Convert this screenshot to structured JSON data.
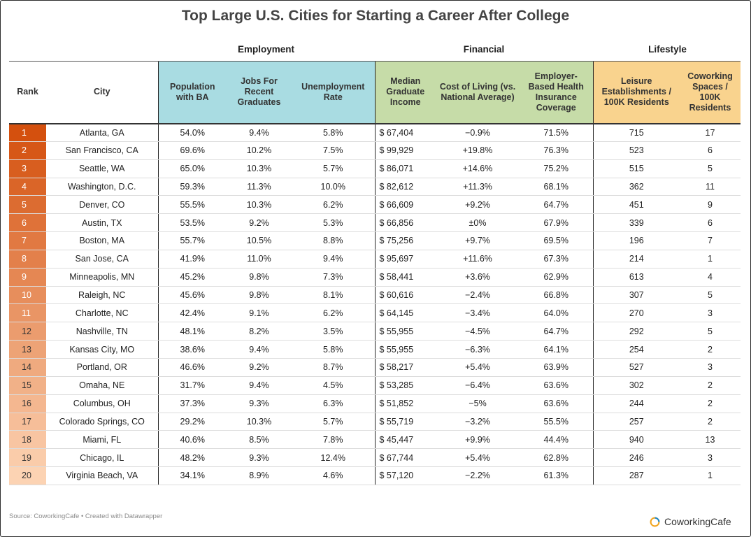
{
  "title": "Top Large U.S. Cities for Starting a Career After College",
  "groups": {
    "employment": "Employment",
    "financial": "Financial",
    "lifestyle": "Lifestyle"
  },
  "columns": {
    "rank": "Rank",
    "city": "City",
    "population_ba": "Population with BA",
    "jobs_recent": "Jobs For Recent Graduates",
    "unemployment": "Unemployment Rate",
    "median_income": "Median Graduate Income",
    "cost_of_living": "Cost of Living (vs. National Average)",
    "health_insurance": "Employer-Based Health Insurance Coverage",
    "leisure": "Leisure Establishments / 100K Residents",
    "coworking": "Coworking Spaces / 100K Residents"
  },
  "colors": {
    "employment_header": "#a9dce2",
    "financial_header": "#c6dca8",
    "lifestyle_header": "#f9d38e",
    "rank_gradient_start": "#d4500e",
    "rank_gradient_end": "#fcd3b3"
  },
  "chart_data": {
    "type": "table",
    "title": "Top Large U.S. Cities for Starting a Career After College",
    "rows": [
      [
        "1",
        "Atlanta, GA",
        "54.0%",
        "9.4%",
        "5.8%",
        "$ 67,404",
        "−0.9%",
        "71.5%",
        "715",
        "17"
      ],
      [
        "2",
        "San Francisco, CA",
        "69.6%",
        "10.2%",
        "7.5%",
        "$ 99,929",
        "+19.8%",
        "76.3%",
        "523",
        "6"
      ],
      [
        "3",
        "Seattle, WA",
        "65.0%",
        "10.3%",
        "5.7%",
        "$ 86,071",
        "+14.6%",
        "75.2%",
        "515",
        "5"
      ],
      [
        "4",
        "Washington, D.C.",
        "59.3%",
        "11.3%",
        "10.0%",
        "$ 82,612",
        "+11.3%",
        "68.1%",
        "362",
        "11"
      ],
      [
        "5",
        "Denver, CO",
        "55.5%",
        "10.3%",
        "6.2%",
        "$ 66,609",
        "+9.2%",
        "64.7%",
        "451",
        "9"
      ],
      [
        "6",
        "Austin, TX",
        "53.5%",
        "9.2%",
        "5.3%",
        "$ 66,856",
        "±0%",
        "67.9%",
        "339",
        "6"
      ],
      [
        "7",
        "Boston, MA",
        "55.7%",
        "10.5%",
        "8.8%",
        "$ 75,256",
        "+9.7%",
        "69.5%",
        "196",
        "7"
      ],
      [
        "8",
        "San Jose, CA",
        "41.9%",
        "11.0%",
        "9.4%",
        "$ 95,697",
        "+11.6%",
        "67.3%",
        "214",
        "1"
      ],
      [
        "9",
        "Minneapolis, MN",
        "45.2%",
        "9.8%",
        "7.3%",
        "$ 58,441",
        "+3.6%",
        "62.9%",
        "613",
        "4"
      ],
      [
        "10",
        "Raleigh, NC",
        "45.6%",
        "9.8%",
        "8.1%",
        "$ 60,616",
        "−2.4%",
        "66.8%",
        "307",
        "5"
      ],
      [
        "11",
        "Charlotte, NC",
        "42.4%",
        "9.1%",
        "6.2%",
        "$ 64,145",
        "−3.4%",
        "64.0%",
        "270",
        "3"
      ],
      [
        "12",
        "Nashville, TN",
        "48.1%",
        "8.2%",
        "3.5%",
        "$ 55,955",
        "−4.5%",
        "64.7%",
        "292",
        "5"
      ],
      [
        "13",
        "Kansas City, MO",
        "38.6%",
        "9.4%",
        "5.8%",
        "$ 55,955",
        "−6.3%",
        "64.1%",
        "254",
        "2"
      ],
      [
        "14",
        "Portland, OR",
        "46.6%",
        "9.2%",
        "8.7%",
        "$ 58,217",
        "+5.4%",
        "63.9%",
        "527",
        "3"
      ],
      [
        "15",
        "Omaha, NE",
        "31.7%",
        "9.4%",
        "4.5%",
        "$ 53,285",
        "−6.4%",
        "63.6%",
        "302",
        "2"
      ],
      [
        "16",
        "Columbus, OH",
        "37.3%",
        "9.3%",
        "6.3%",
        "$ 51,852",
        "−5%",
        "63.6%",
        "244",
        "2"
      ],
      [
        "17",
        "Colorado Springs, CO",
        "29.2%",
        "10.3%",
        "5.7%",
        "$ 55,719",
        "−3.2%",
        "55.5%",
        "257",
        "2"
      ],
      [
        "18",
        "Miami, FL",
        "40.6%",
        "8.5%",
        "7.8%",
        "$ 45,447",
        "+9.9%",
        "44.4%",
        "940",
        "13"
      ],
      [
        "19",
        "Chicago, IL",
        "48.2%",
        "9.3%",
        "12.4%",
        "$ 67,744",
        "+5.4%",
        "62.8%",
        "246",
        "3"
      ],
      [
        "20",
        "Virginia Beach, VA",
        "34.1%",
        "8.9%",
        "4.6%",
        "$ 57,120",
        "−2.2%",
        "61.3%",
        "287",
        "1"
      ]
    ]
  },
  "footer": {
    "source": "Source: CoworkingCafe • Created with Datawrapper",
    "brand": "CoworkingCafe",
    "brand_icon": "coworkingcafe-logo-icon"
  }
}
